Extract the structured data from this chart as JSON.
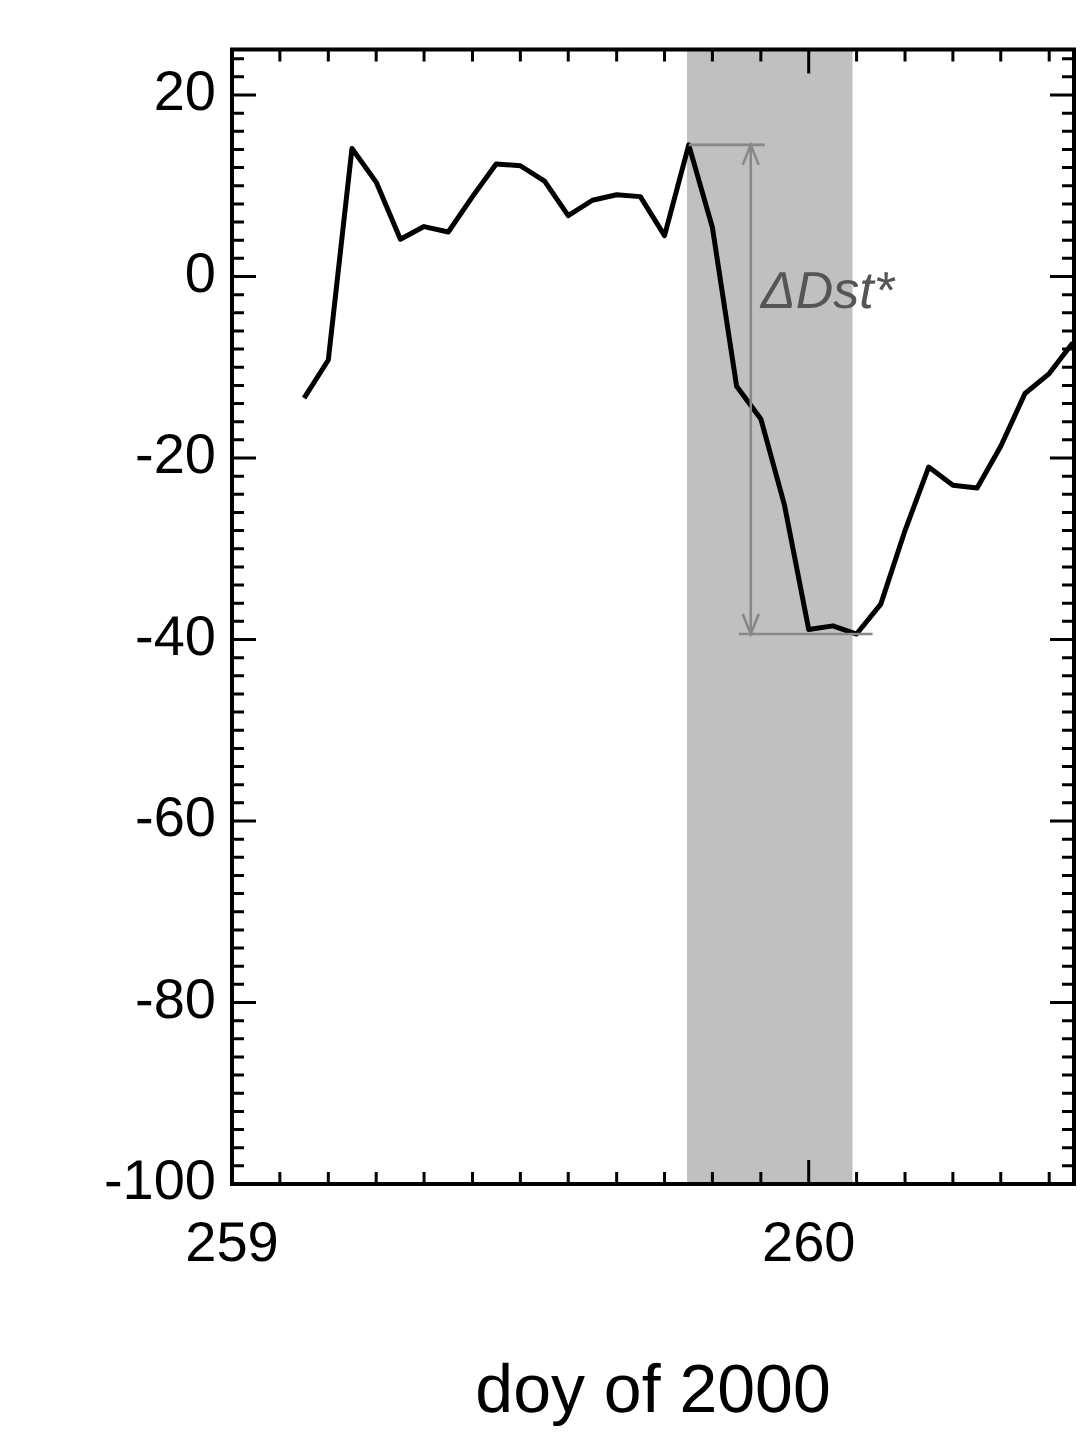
{
  "chart_data": {
    "type": "line",
    "xlabel": "doy of 2000",
    "x": [
      259.125,
      259.167,
      259.208,
      259.25,
      259.292,
      259.333,
      259.375,
      259.417,
      259.458,
      259.5,
      259.542,
      259.583,
      259.625,
      259.667,
      259.708,
      259.75,
      259.792,
      259.833,
      259.875,
      259.917,
      259.958,
      260,
      260.042,
      260.083,
      260.125,
      260.167,
      260.208,
      260.25,
      260.292,
      260.333,
      260.375,
      260.417,
      260.458
    ],
    "series": [
      {
        "color": "#000000",
        "values": [
          -13.4,
          -9.2,
          14.1,
          10.4,
          4.1,
          5.5,
          4.9,
          8.8,
          12.4,
          12.2,
          10.5,
          6.7,
          8.4,
          9.0,
          8.8,
          4.5,
          14.5,
          5.4,
          -12.1,
          -15.7,
          -25.2,
          -38.9,
          -38.5,
          -39.4,
          -36.1,
          -28.0,
          -21.0,
          -23.0,
          -23.3,
          -18.7,
          -12.9,
          -10.7,
          -7.3
        ]
      }
    ],
    "xlim": [
      259,
      260.46
    ],
    "xticks": [
      259,
      {
        "value": 259.083,
        "label": null
      },
      {
        "value": 259.167,
        "label": null
      },
      {
        "value": 259.25,
        "label": null
      },
      {
        "value": 259.333,
        "label": null
      },
      {
        "value": 259.417,
        "label": null
      },
      {
        "value": 259.5,
        "label": null
      },
      {
        "value": 259.583,
        "label": null
      },
      {
        "value": 259.667,
        "label": null
      },
      {
        "value": 259.75,
        "label": null
      },
      {
        "value": 259.833,
        "label": null
      },
      {
        "value": 259.917,
        "label": null
      },
      260,
      {
        "value": 260.083,
        "label": null
      },
      {
        "value": 260.167,
        "label": null
      },
      {
        "value": 260.25,
        "label": null
      },
      {
        "value": 260.333,
        "label": null
      },
      {
        "value": 260.417,
        "label": null
      }
    ],
    "ylim": [
      -100,
      25
    ],
    "yticks": [
      -100,
      {
        "value": -98,
        "label": null
      },
      {
        "value": -96,
        "label": null
      },
      {
        "value": -94,
        "label": null
      },
      {
        "value": -92,
        "label": null
      },
      {
        "value": -90,
        "label": null
      },
      {
        "value": -88,
        "label": null
      },
      {
        "value": -86,
        "label": null
      },
      {
        "value": -84,
        "label": null
      },
      {
        "value": -82,
        "label": null
      },
      -80,
      {
        "value": -78,
        "label": null
      },
      {
        "value": -76,
        "label": null
      },
      {
        "value": -74,
        "label": null
      },
      {
        "value": -72,
        "label": null
      },
      {
        "value": -70,
        "label": null
      },
      {
        "value": -68,
        "label": null
      },
      {
        "value": -66,
        "label": null
      },
      {
        "value": -64,
        "label": null
      },
      {
        "value": -62,
        "label": null
      },
      -60,
      {
        "value": -58,
        "label": null
      },
      {
        "value": -56,
        "label": null
      },
      {
        "value": -54,
        "label": null
      },
      {
        "value": -52,
        "label": null
      },
      {
        "value": -50,
        "label": null
      },
      {
        "value": -48,
        "label": null
      },
      {
        "value": -46,
        "label": null
      },
      {
        "value": -44,
        "label": null
      },
      {
        "value": -42,
        "label": null
      },
      -40,
      {
        "value": -38,
        "label": null
      },
      {
        "value": -36,
        "label": null
      },
      {
        "value": -34,
        "label": null
      },
      {
        "value": -32,
        "label": null
      },
      {
        "value": -30,
        "label": null
      },
      {
        "value": -28,
        "label": null
      },
      {
        "value": -26,
        "label": null
      },
      {
        "value": -24,
        "label": null
      },
      {
        "value": -22,
        "label": null
      },
      -20,
      {
        "value": -18,
        "label": null
      },
      {
        "value": -16,
        "label": null
      },
      {
        "value": -14,
        "label": null
      },
      {
        "value": -12,
        "label": null
      },
      {
        "value": -10,
        "label": null
      },
      {
        "value": -8,
        "label": null
      },
      {
        "value": -6,
        "label": null
      },
      {
        "value": -4,
        "label": null
      },
      {
        "value": -2,
        "label": null
      },
      0,
      {
        "value": 2,
        "label": null
      },
      {
        "value": 4,
        "label": null
      },
      {
        "value": 6,
        "label": null
      },
      {
        "value": 8,
        "label": null
      },
      {
        "value": 10,
        "label": null
      },
      {
        "value": 12,
        "label": null
      },
      {
        "value": 14,
        "label": null
      },
      {
        "value": 16,
        "label": null
      },
      {
        "value": 18,
        "label": null
      },
      20,
      {
        "value": 22,
        "label": null
      },
      {
        "value": 24,
        "label": null
      }
    ],
    "bands": [
      {
        "axis": "x",
        "from": 259.789,
        "to": 260.076,
        "color": "#c0c0c0"
      }
    ],
    "annotations": [
      "ΔDst*"
    ],
    "marker": "none",
    "line_style": "solid",
    "grid": false,
    "legend": false
  }
}
